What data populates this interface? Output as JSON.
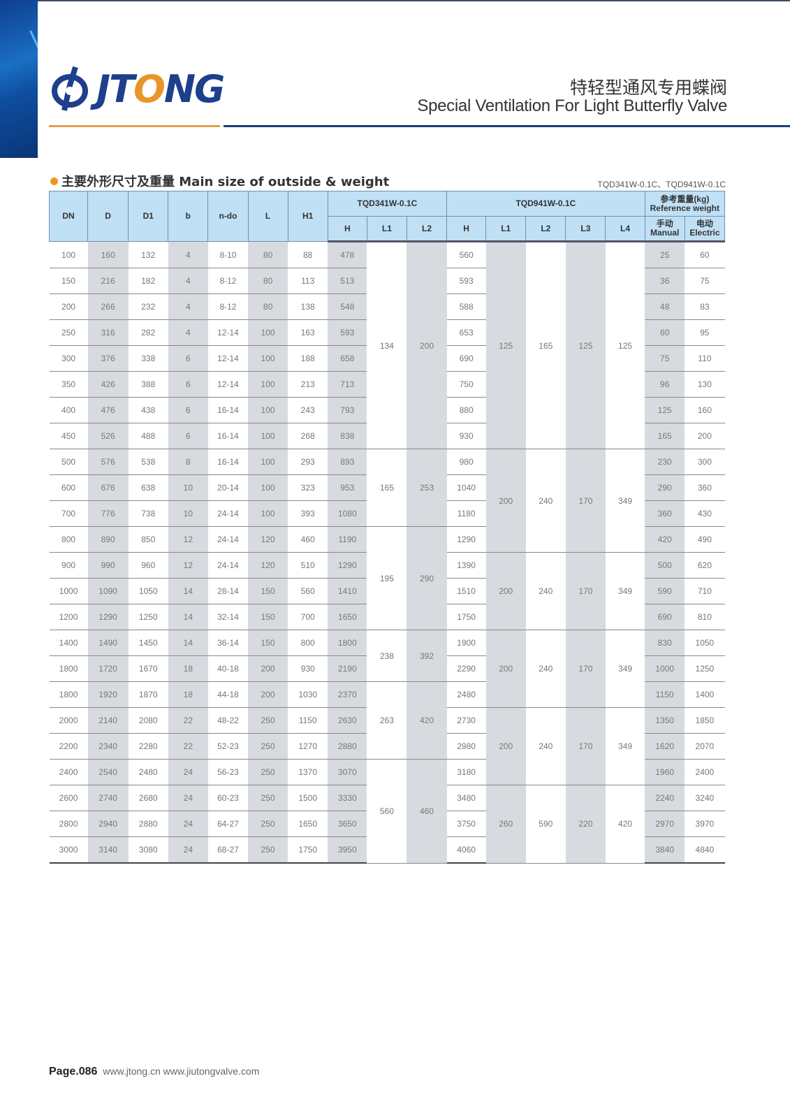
{
  "brand": {
    "name_pre": "JT",
    "name_o": "O",
    "name_post": "NG",
    "colors": {
      "blue": "#1d3f8c",
      "orange": "#e8962a"
    }
  },
  "header": {
    "title_cn": "特轻型通风专用蝶阀",
    "title_en": "Special Ventilation For Light Butterfly Valve"
  },
  "section": {
    "title": "主要外形尺寸及重量 Main size of outside & weight",
    "models": "TQD341W-0.1C、TQD941W-0.1C"
  },
  "table": {
    "headers": {
      "dn": "DN",
      "d": "D",
      "d1": "D1",
      "b": "b",
      "ndo": "n-do",
      "l": "L",
      "h1": "H1",
      "g341": "TQD341W-0.1C",
      "g941": "TQD941W-0.1C",
      "weight_cn": "参考重量(kg)",
      "weight_en": "Reference weight",
      "h": "H",
      "l1": "L1",
      "l2": "L2",
      "l3": "L3",
      "l4": "L4",
      "manual_cn": "手动",
      "manual_en": "Manual",
      "electric_cn": "电动",
      "electric_en": "Electric"
    },
    "rows": [
      [
        "100",
        "160",
        "132",
        "4",
        "8-10",
        "80",
        "88",
        "478",
        "560",
        "25",
        "60"
      ],
      [
        "150",
        "216",
        "182",
        "4",
        "8-12",
        "80",
        "113",
        "513",
        "593",
        "36",
        "75"
      ],
      [
        "200",
        "266",
        "232",
        "4",
        "8-12",
        "80",
        "138",
        "548",
        "588",
        "48",
        "83"
      ],
      [
        "250",
        "316",
        "282",
        "4",
        "12-14",
        "100",
        "163",
        "593",
        "653",
        "60",
        "95"
      ],
      [
        "300",
        "376",
        "338",
        "6",
        "12-14",
        "100",
        "188",
        "658",
        "690",
        "75",
        "110"
      ],
      [
        "350",
        "426",
        "388",
        "6",
        "12-14",
        "100",
        "213",
        "713",
        "750",
        "96",
        "130"
      ],
      [
        "400",
        "476",
        "438",
        "6",
        "16-14",
        "100",
        "243",
        "793",
        "880",
        "125",
        "160"
      ],
      [
        "450",
        "526",
        "488",
        "6",
        "16-14",
        "100",
        "268",
        "838",
        "930",
        "165",
        "200"
      ],
      [
        "500",
        "576",
        "538",
        "8",
        "16-14",
        "100",
        "293",
        "893",
        "980",
        "230",
        "300"
      ],
      [
        "600",
        "676",
        "638",
        "10",
        "20-14",
        "100",
        "323",
        "953",
        "1040",
        "290",
        "360"
      ],
      [
        "700",
        "776",
        "738",
        "10",
        "24-14",
        "100",
        "393",
        "1080",
        "1180",
        "360",
        "430"
      ],
      [
        "800",
        "890",
        "850",
        "12",
        "24-14",
        "120",
        "460",
        "1190",
        "1290",
        "420",
        "490"
      ],
      [
        "900",
        "990",
        "960",
        "12",
        "24-14",
        "120",
        "510",
        "1290",
        "1390",
        "500",
        "620"
      ],
      [
        "1000",
        "1090",
        "1050",
        "14",
        "28-14",
        "150",
        "560",
        "1410",
        "1510",
        "590",
        "710"
      ],
      [
        "1200",
        "1290",
        "1250",
        "14",
        "32-14",
        "150",
        "700",
        "1650",
        "1750",
        "690",
        "810"
      ],
      [
        "1400",
        "1490",
        "1450",
        "14",
        "36-14",
        "150",
        "800",
        "1800",
        "1900",
        "830",
        "1050"
      ],
      [
        "1800",
        "1720",
        "1670",
        "18",
        "40-18",
        "200",
        "930",
        "2190",
        "2290",
        "1000",
        "1250"
      ],
      [
        "1800",
        "1920",
        "1870",
        "18",
        "44-18",
        "200",
        "1030",
        "2370",
        "2480",
        "1150",
        "1400"
      ],
      [
        "2000",
        "2140",
        "2080",
        "22",
        "48-22",
        "250",
        "1150",
        "2630",
        "2730",
        "1350",
        "1850"
      ],
      [
        "2200",
        "2340",
        "2280",
        "22",
        "52-23",
        "250",
        "1270",
        "2880",
        "2980",
        "1620",
        "2070"
      ],
      [
        "2400",
        "2540",
        "2480",
        "24",
        "56-23",
        "250",
        "1370",
        "3070",
        "3180",
        "1960",
        "2400"
      ],
      [
        "2600",
        "2740",
        "2680",
        "24",
        "60-23",
        "250",
        "1500",
        "3330",
        "3480",
        "2240",
        "3240"
      ],
      [
        "2800",
        "2940",
        "2880",
        "24",
        "64-27",
        "250",
        "1650",
        "3650",
        "3750",
        "2970",
        "3970"
      ],
      [
        "3000",
        "3140",
        "3080",
        "24",
        "68-27",
        "250",
        "1750",
        "3950",
        "4060",
        "3840",
        "4840"
      ]
    ],
    "groups_341": [
      {
        "start": 0,
        "span": 8,
        "l1": "134",
        "l2": "200"
      },
      {
        "start": 8,
        "span": 3,
        "l1": "165",
        "l2": "253"
      },
      {
        "start": 11,
        "span": 4,
        "l1": "195",
        "l2": "290"
      },
      {
        "start": 15,
        "span": 2,
        "l1": "238",
        "l2": "392"
      },
      {
        "start": 17,
        "span": 3,
        "l1": "263",
        "l2": "420"
      },
      {
        "start": 20,
        "span": 4,
        "l1": "560",
        "l2": "460"
      }
    ],
    "groups_941": [
      {
        "start": 0,
        "span": 8,
        "l1": "125",
        "l2": "165",
        "l3": "125",
        "l4": "125"
      },
      {
        "start": 8,
        "span": 4,
        "l1": "200",
        "l2": "240",
        "l3": "170",
        "l4": "349"
      },
      {
        "start": 12,
        "span": 3,
        "l1": "200",
        "l2": "240",
        "l3": "170",
        "l4": "349"
      },
      {
        "start": 15,
        "span": 3,
        "l1": "200",
        "l2": "240",
        "l3": "170",
        "l4": "349"
      },
      {
        "start": 18,
        "span": 3,
        "l1": "200",
        "l2": "240",
        "l3": "170",
        "l4": "349"
      },
      {
        "start": 21,
        "span": 3,
        "l1": "260",
        "l2": "590",
        "l3": "220",
        "l4": "420"
      }
    ]
  },
  "footer": {
    "page": "Page.086",
    "links": "www.jtong.cn  www.jiutongvalve.com"
  }
}
